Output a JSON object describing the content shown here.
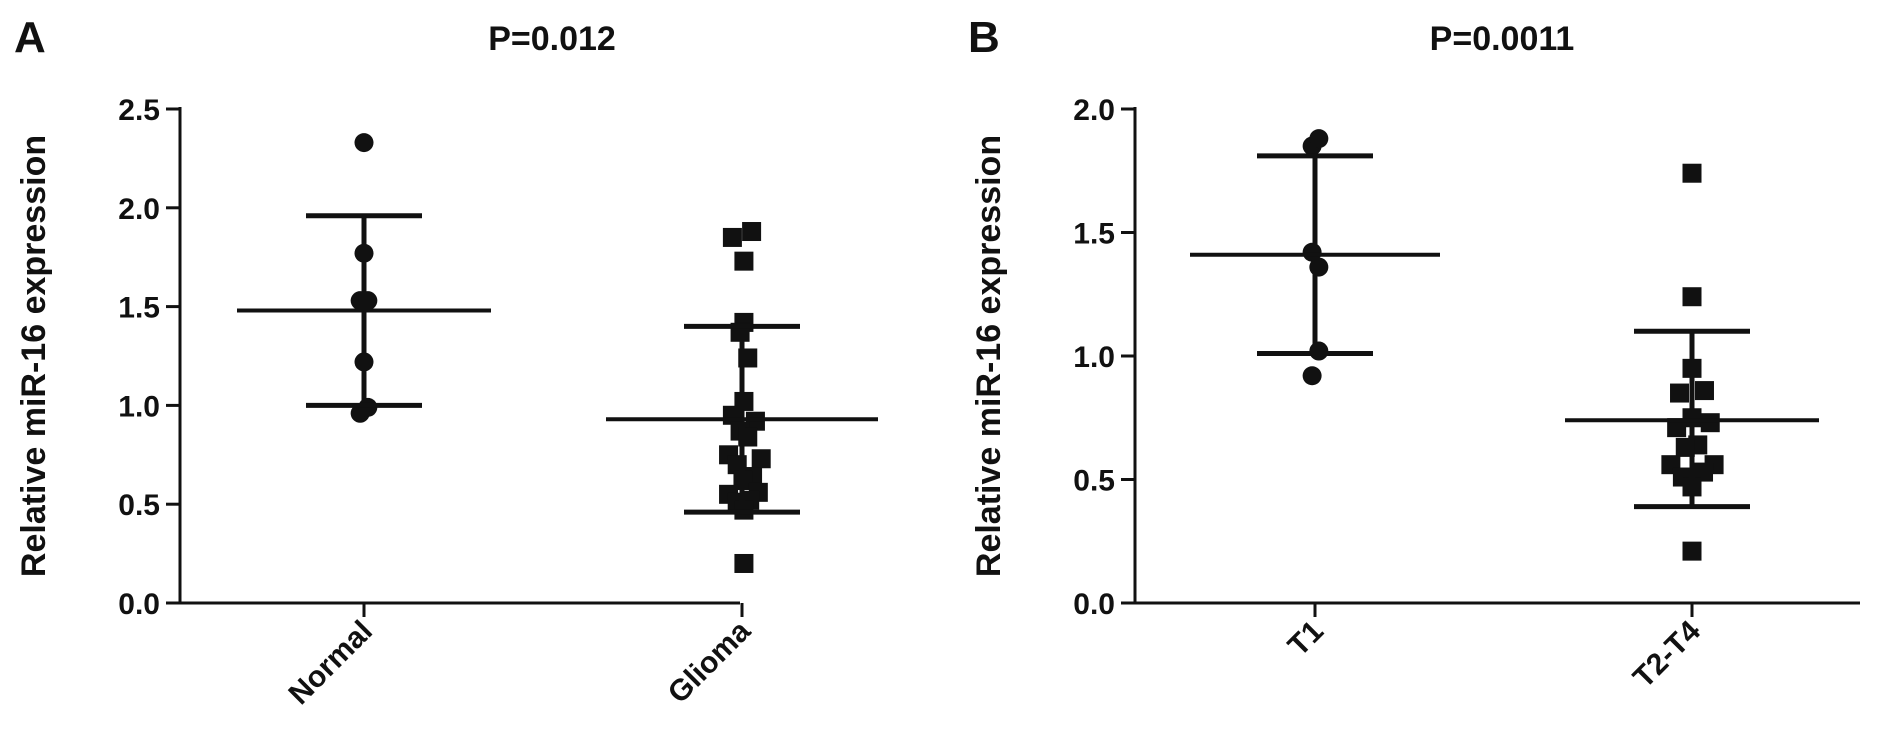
{
  "chart_data": [
    {
      "panel_label": "A",
      "type": "scatter",
      "title": "P=0.012",
      "ylabel": "Relative miR-16 expression",
      "ylim": [
        0,
        2.5
      ],
      "yticks": [
        "0.0",
        "0.5",
        "1.0",
        "1.5",
        "2.0",
        "2.5"
      ],
      "categories": [
        "Normal",
        "Glioma"
      ],
      "series": [
        {
          "category": "Normal",
          "marker": "circle",
          "mean": 1.48,
          "sd_upper": 1.96,
          "sd_lower": 1.0,
          "points": [
            {
              "x": 0.0,
              "y": 2.33
            },
            {
              "x": 0.0,
              "y": 1.77
            },
            {
              "x": -0.16,
              "y": 1.53
            },
            {
              "x": 0.16,
              "y": 1.53
            },
            {
              "x": 0.0,
              "y": 1.22
            },
            {
              "x": -0.16,
              "y": 0.96
            },
            {
              "x": 0.16,
              "y": 0.99
            }
          ]
        },
        {
          "category": "Glioma",
          "marker": "square",
          "mean": 0.93,
          "sd_upper": 1.4,
          "sd_lower": 0.46,
          "points": [
            {
              "x": -0.4,
              "y": 1.85
            },
            {
              "x": 0.4,
              "y": 1.88
            },
            {
              "x": 0.08,
              "y": 1.73
            },
            {
              "x": 0.08,
              "y": 1.42
            },
            {
              "x": -0.08,
              "y": 1.37
            },
            {
              "x": 0.24,
              "y": 1.24
            },
            {
              "x": 0.08,
              "y": 1.02
            },
            {
              "x": -0.4,
              "y": 0.95
            },
            {
              "x": 0.56,
              "y": 0.92
            },
            {
              "x": -0.08,
              "y": 0.87
            },
            {
              "x": 0.24,
              "y": 0.84
            },
            {
              "x": -0.56,
              "y": 0.75
            },
            {
              "x": 0.8,
              "y": 0.73
            },
            {
              "x": -0.2,
              "y": 0.7
            },
            {
              "x": 0.44,
              "y": 0.64
            },
            {
              "x": 0.04,
              "y": 0.62
            },
            {
              "x": -0.56,
              "y": 0.55
            },
            {
              "x": 0.68,
              "y": 0.56
            },
            {
              "x": -0.2,
              "y": 0.51
            },
            {
              "x": 0.32,
              "y": 0.52
            },
            {
              "x": 0.08,
              "y": 0.47
            },
            {
              "x": 0.08,
              "y": 0.2
            }
          ]
        }
      ]
    },
    {
      "panel_label": "B",
      "type": "scatter",
      "title": "P=0.0011",
      "ylabel": "Relative miR-16 expression",
      "ylim": [
        0,
        2.0
      ],
      "yticks": [
        "0.0",
        "0.5",
        "1.0",
        "1.5",
        "2.0"
      ],
      "categories": [
        "T1",
        "T2-T4"
      ],
      "series": [
        {
          "category": "T1",
          "marker": "circle",
          "mean": 1.41,
          "sd_upper": 1.81,
          "sd_lower": 1.01,
          "points": [
            {
              "x": -0.12,
              "y": 1.85
            },
            {
              "x": 0.16,
              "y": 1.88
            },
            {
              "x": -0.12,
              "y": 1.42
            },
            {
              "x": 0.16,
              "y": 1.36
            },
            {
              "x": 0.16,
              "y": 1.02
            },
            {
              "x": -0.12,
              "y": 0.92
            }
          ]
        },
        {
          "category": "T2-T4",
          "marker": "square",
          "mean": 0.74,
          "sd_upper": 1.1,
          "sd_lower": 0.39,
          "points": [
            {
              "x": 0.0,
              "y": 1.74
            },
            {
              "x": 0.0,
              "y": 1.24
            },
            {
              "x": 0.0,
              "y": 0.95
            },
            {
              "x": -0.52,
              "y": 0.85
            },
            {
              "x": 0.52,
              "y": 0.86
            },
            {
              "x": 0.0,
              "y": 0.75
            },
            {
              "x": -0.64,
              "y": 0.71
            },
            {
              "x": 0.76,
              "y": 0.73
            },
            {
              "x": 0.24,
              "y": 0.64
            },
            {
              "x": -0.28,
              "y": 0.63
            },
            {
              "x": -0.88,
              "y": 0.56
            },
            {
              "x": 0.92,
              "y": 0.56
            },
            {
              "x": -0.4,
              "y": 0.51
            },
            {
              "x": 0.48,
              "y": 0.53
            },
            {
              "x": 0.0,
              "y": 0.47
            },
            {
              "x": 0.0,
              "y": 0.21
            }
          ]
        }
      ]
    }
  ]
}
